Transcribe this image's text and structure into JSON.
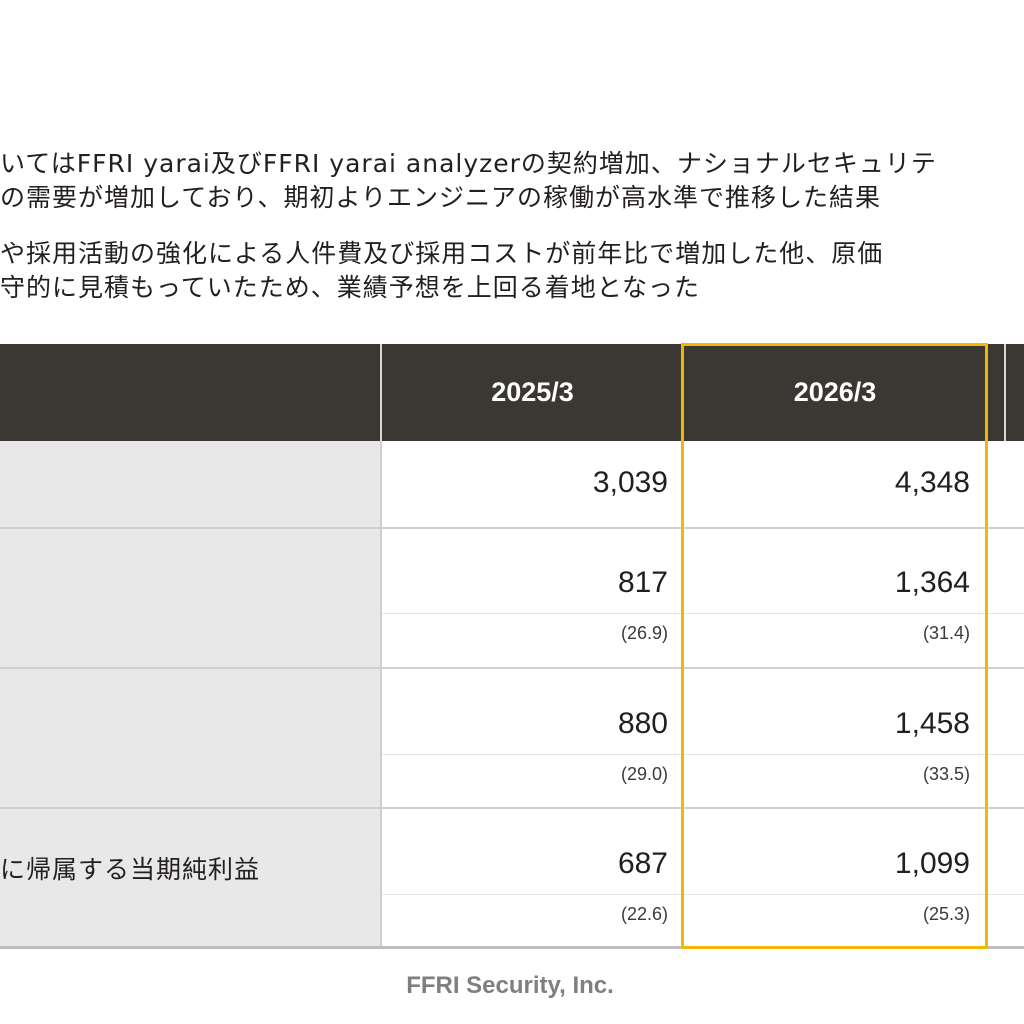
{
  "paragraph1": {
    "line1": "いてはFFRI yarai及びFFRI yarai analyzerの契約増加、ナショナルセキュリテ",
    "line2": "の需要が増加しており、期初よりエンジニアの稼働が高水準で推移した結果"
  },
  "paragraph2": {
    "line1": "や採用活動の強化による人件費及び採用コストが前年比で増加した他、原価",
    "line2": "守的に見積もっていたため、業績予想を上回る着地となった"
  },
  "table": {
    "headers": [
      "2025/3",
      "2026/3"
    ],
    "rows": [
      {
        "label": "",
        "v2025": "3,039",
        "v2026": "4,348"
      },
      {
        "label": "",
        "v2025": "817",
        "v2026": "1,364",
        "p2025": "(26.9)",
        "p2026": "(31.4)"
      },
      {
        "label": "",
        "v2025": "880",
        "v2026": "1,458",
        "p2025": "(29.0)",
        "p2026": "(33.5)"
      },
      {
        "label": "に帰属する当期純利益",
        "v2025": "687",
        "v2026": "1,099",
        "p2025": "(22.6)",
        "p2026": "(25.3)"
      }
    ]
  },
  "highlight_color": "#f2b705",
  "header_color": "#3b3834",
  "footer": "FFRI Security, Inc."
}
